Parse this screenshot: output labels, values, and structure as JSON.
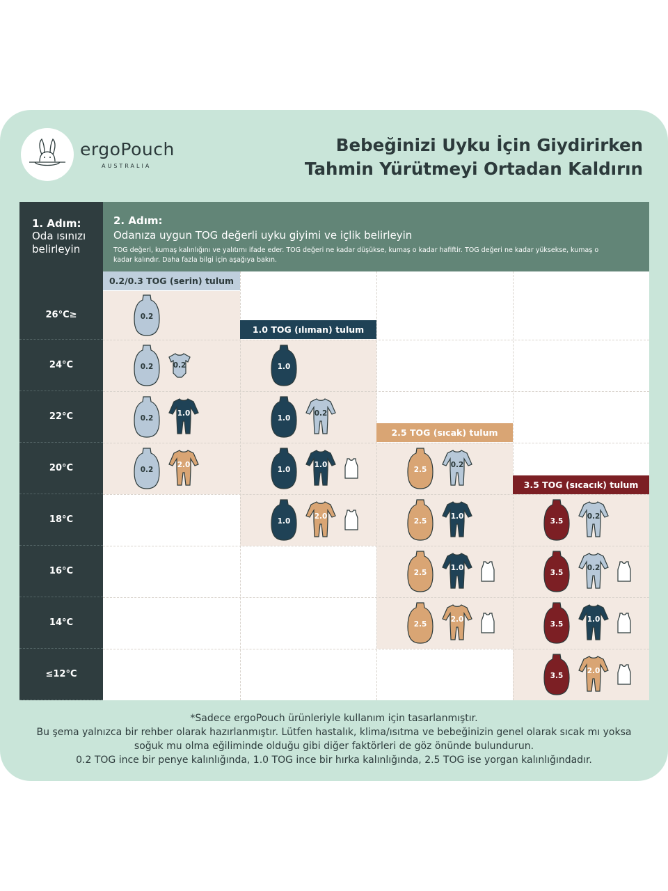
{
  "brand": {
    "name": "ergoPouch",
    "sub": "AUSTRALIA",
    "logo_icon": "kangaroo-logo-icon"
  },
  "headline": {
    "line1": "Bebeğinizi Uyku İçin Giydirirken",
    "line2": "Tahmin Yürütmeyi Ortadan Kaldırın"
  },
  "step1": {
    "title": "1. Adım:",
    "desc1": "Oda ısınızı",
    "desc2": "belirleyin"
  },
  "step2": {
    "title": "2. Adım:",
    "subtitle": "Odanıza uygun TOG değerli uyku giyimi ve içlik belirleyin",
    "desc1": "TOG değeri, kumaş kalınlığını ve yalıtımı ifade eder. TOG değeri ne kadar düşükse, kumaş o kadar hafiftir. TOG değeri ne kadar yüksekse, kumaş o",
    "desc2": "kadar kalındır. Daha fazla bilgi için aşağıya bakın."
  },
  "temps": [
    "26°C≥",
    "24°C",
    "22°C",
    "20°C",
    "18°C",
    "16°C",
    "14°C",
    "≤12°C"
  ],
  "bands": [
    {
      "label": "0.2/0.3 TOG (serin) tulum",
      "col": 0,
      "bg": "#bfcfdd",
      "fg": "#2c3a3b"
    },
    {
      "label": "1.0 TOG (ılıman) tulum",
      "col": 1,
      "bg": "#1f4256",
      "fg": "#ffffff"
    },
    {
      "label": "2.5 TOG (sıcak) tulum",
      "col": 2,
      "bg": "#d9a574",
      "fg": "#ffffff"
    },
    {
      "label": "3.5 TOG (sıcacık) tulum",
      "col": 3,
      "bg": "#7c1f24",
      "fg": "#ffffff"
    }
  ],
  "colors": {
    "0.2": "#b7c8d8",
    "1.0": "#1f4256",
    "2.5": "#d9a574",
    "3.5": "#7c1f24",
    "2.0": "#d9a574"
  },
  "cells": [
    {
      "row": 0,
      "col": 0,
      "items": [
        {
          "kind": "sack",
          "tog": "0.2"
        }
      ]
    },
    {
      "row": 1,
      "col": 0,
      "items": [
        {
          "kind": "sack",
          "tog": "0.2"
        },
        {
          "kind": "romper",
          "tog": "0.2"
        }
      ]
    },
    {
      "row": 1,
      "col": 1,
      "items": [
        {
          "kind": "sack",
          "tog": "1.0"
        }
      ]
    },
    {
      "row": 2,
      "col": 0,
      "items": [
        {
          "kind": "sack",
          "tog": "0.2"
        },
        {
          "kind": "suit",
          "tog": "1.0"
        }
      ]
    },
    {
      "row": 2,
      "col": 1,
      "items": [
        {
          "kind": "sack",
          "tog": "1.0"
        },
        {
          "kind": "suit",
          "tog": "0.2"
        }
      ]
    },
    {
      "row": 3,
      "col": 0,
      "items": [
        {
          "kind": "sack",
          "tog": "0.2"
        },
        {
          "kind": "suit",
          "tog": "2.0"
        }
      ]
    },
    {
      "row": 3,
      "col": 1,
      "items": [
        {
          "kind": "sack",
          "tog": "1.0"
        },
        {
          "kind": "suit",
          "tog": "1.0"
        },
        {
          "kind": "vest",
          "tog": ""
        }
      ]
    },
    {
      "row": 3,
      "col": 2,
      "items": [
        {
          "kind": "sack",
          "tog": "2.5"
        },
        {
          "kind": "suit",
          "tog": "0.2"
        }
      ]
    },
    {
      "row": 4,
      "col": 1,
      "items": [
        {
          "kind": "sack",
          "tog": "1.0"
        },
        {
          "kind": "suit",
          "tog": "2.0"
        },
        {
          "kind": "vest",
          "tog": ""
        }
      ]
    },
    {
      "row": 4,
      "col": 2,
      "items": [
        {
          "kind": "sack",
          "tog": "2.5"
        },
        {
          "kind": "suit",
          "tog": "1.0"
        }
      ]
    },
    {
      "row": 4,
      "col": 3,
      "items": [
        {
          "kind": "sack",
          "tog": "3.5"
        },
        {
          "kind": "suit",
          "tog": "0.2"
        }
      ]
    },
    {
      "row": 5,
      "col": 2,
      "items": [
        {
          "kind": "sack",
          "tog": "2.5"
        },
        {
          "kind": "suit",
          "tog": "1.0"
        },
        {
          "kind": "vest",
          "tog": ""
        }
      ]
    },
    {
      "row": 5,
      "col": 3,
      "items": [
        {
          "kind": "sack",
          "tog": "3.5"
        },
        {
          "kind": "suit",
          "tog": "0.2"
        },
        {
          "kind": "vest",
          "tog": ""
        }
      ]
    },
    {
      "row": 6,
      "col": 2,
      "items": [
        {
          "kind": "sack",
          "tog": "2.5"
        },
        {
          "kind": "suit",
          "tog": "2.0"
        },
        {
          "kind": "vest",
          "tog": ""
        }
      ]
    },
    {
      "row": 6,
      "col": 3,
      "items": [
        {
          "kind": "sack",
          "tog": "3.5"
        },
        {
          "kind": "suit",
          "tog": "1.0"
        },
        {
          "kind": "vest",
          "tog": ""
        }
      ]
    },
    {
      "row": 7,
      "col": 3,
      "items": [
        {
          "kind": "sack",
          "tog": "3.5"
        },
        {
          "kind": "suit",
          "tog": "2.0"
        },
        {
          "kind": "vest",
          "tog": ""
        }
      ]
    }
  ],
  "footer": {
    "line1": "*Sadece ergoPouch ürünleriyle kullanım için tasarlanmıştır.",
    "line2": "Bu şema yalnızca bir rehber olarak hazırlanmıştır. Lütfen hastalık, klima/ısıtma ve bebeğinizin genel olarak sıcak mı yoksa",
    "line3": "soğuk mu olma eğiliminde olduğu gibi diğer faktörleri de göz önünde bulundurun.",
    "line4": "0.2 TOG ince bir penye kalınlığında, 1.0 TOG ince bir hırka kalınlığında, 2.5 TOG ise yorgan kalınlığındadır."
  }
}
